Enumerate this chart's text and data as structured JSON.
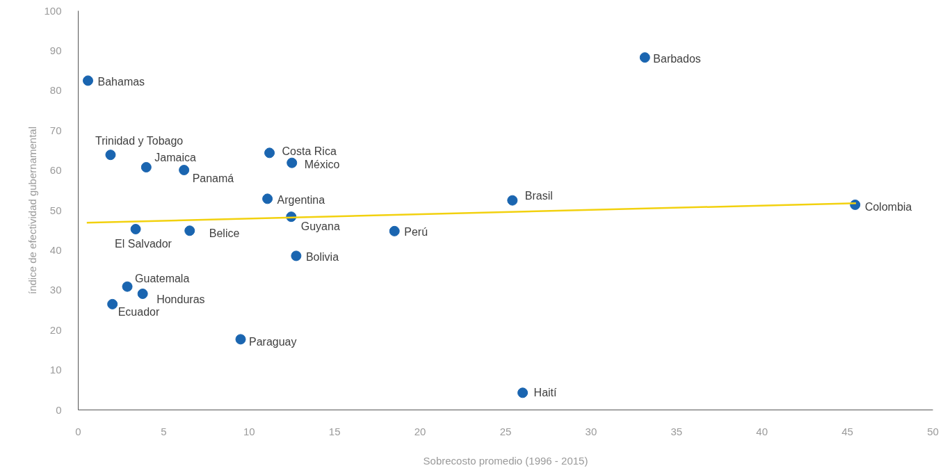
{
  "chart_data": {
    "type": "scatter",
    "xlabel": "Sobrecosto promedio (1996 - 2015)",
    "ylabel": "índice de efectividad gubernamental",
    "xlim": [
      0,
      50
    ],
    "ylim": [
      0,
      100
    ],
    "xticks": [
      0,
      5,
      10,
      15,
      20,
      25,
      30,
      35,
      40,
      45,
      50
    ],
    "yticks": [
      0,
      10,
      20,
      30,
      40,
      50,
      60,
      70,
      80,
      90,
      100
    ],
    "grid": false,
    "series": [
      {
        "marker": "circle",
        "color": "#1a65b0",
        "x": [
          0.57,
          1.89,
          3.98,
          6.19,
          11.19,
          12.5,
          11.07,
          12.46,
          12.75,
          25.4,
          18.5,
          45.45,
          3.36,
          6.52,
          2.87,
          3.77,
          2.0,
          9.5,
          26.0,
          33.15
        ],
        "values": [
          82.5,
          63.9,
          60.8,
          60.1,
          64.4,
          61.9,
          52.9,
          48.4,
          38.6,
          52.5,
          44.8,
          51.4,
          45.3,
          44.9,
          30.9,
          29.1,
          26.5,
          17.7,
          4.3,
          88.3
        ]
      },
      {
        "type": "line",
        "color": "#f2d10f",
        "x": [
          0.5,
          45.5
        ],
        "values": [
          46.9,
          51.8
        ]
      }
    ],
    "annotations": [
      {
        "text": "Bahamas",
        "x": 0.57,
        "y": 82.5
      },
      {
        "text": "Trinidad y Tobago",
        "x": 1.89,
        "y": 63.9
      },
      {
        "text": "Jamaica",
        "x": 3.98,
        "y": 60.8
      },
      {
        "text": "Panamá",
        "x": 6.19,
        "y": 60.1
      },
      {
        "text": "Costa Rica",
        "x": 11.19,
        "y": 64.4
      },
      {
        "text": "México",
        "x": 12.5,
        "y": 61.9
      },
      {
        "text": "Argentina",
        "x": 11.07,
        "y": 52.9
      },
      {
        "text": "Guyana",
        "x": 12.46,
        "y": 48.4
      },
      {
        "text": "Bolivia",
        "x": 12.75,
        "y": 38.6
      },
      {
        "text": "Brasil",
        "x": 25.4,
        "y": 52.5
      },
      {
        "text": "Perú",
        "x": 18.5,
        "y": 44.8
      },
      {
        "text": "Colombia",
        "x": 45.45,
        "y": 51.4
      },
      {
        "text": "El Salvador",
        "x": 3.36,
        "y": 45.3
      },
      {
        "text": "Belice",
        "x": 6.52,
        "y": 44.9
      },
      {
        "text": "Guatemala",
        "x": 2.87,
        "y": 30.9
      },
      {
        "text": "Honduras",
        "x": 3.77,
        "y": 29.1
      },
      {
        "text": "Ecuador",
        "x": 2.0,
        "y": 26.5
      },
      {
        "text": "Paraguay",
        "x": 9.5,
        "y": 17.7
      },
      {
        "text": "Haití",
        "x": 26.0,
        "y": 4.3
      },
      {
        "text": "Barbados",
        "x": 33.15,
        "y": 88.3
      }
    ]
  }
}
